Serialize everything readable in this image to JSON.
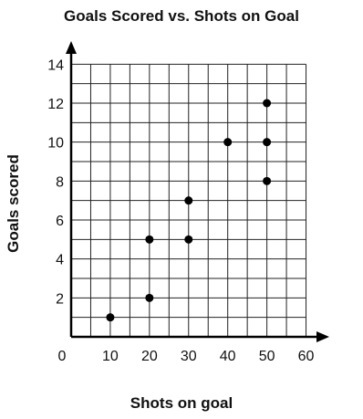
{
  "chart_data": {
    "type": "scatter",
    "title": "Goals Scored vs. Shots on Goal",
    "xlabel": "Shots on goal",
    "ylabel": "Goals scored",
    "xlim": [
      0,
      65
    ],
    "ylim": [
      0,
      15
    ],
    "x_ticks": [
      0,
      10,
      20,
      30,
      40,
      50,
      60
    ],
    "y_ticks": [
      2,
      4,
      6,
      8,
      10,
      12,
      14
    ],
    "grid": true,
    "points": [
      {
        "x": 10,
        "y": 1
      },
      {
        "x": 20,
        "y": 2
      },
      {
        "x": 20,
        "y": 5
      },
      {
        "x": 30,
        "y": 5
      },
      {
        "x": 30,
        "y": 7
      },
      {
        "x": 40,
        "y": 10
      },
      {
        "x": 50,
        "y": 8
      },
      {
        "x": 50,
        "y": 10
      },
      {
        "x": 50,
        "y": 12
      }
    ]
  }
}
